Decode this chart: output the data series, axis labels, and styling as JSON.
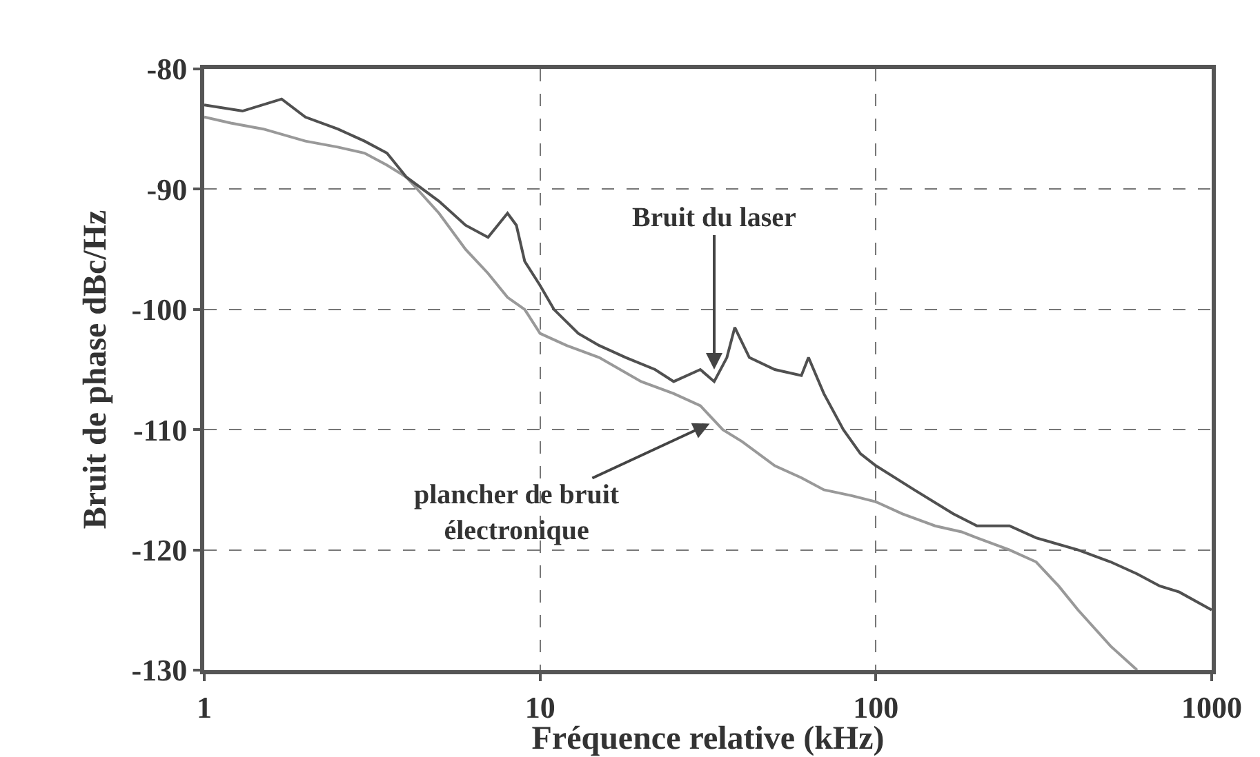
{
  "chart_data": {
    "type": "line",
    "xlabel": "Fréquence relative (kHz)",
    "ylabel": "Bruit de phase dBc/Hz",
    "log": "x",
    "xlim": [
      1,
      1000
    ],
    "xticks": [
      1,
      10,
      100,
      1000
    ],
    "ylim": [
      -130,
      -80
    ],
    "yticks": [
      -130,
      -120,
      -110,
      -100,
      -90,
      -80
    ],
    "grid": true,
    "line_style": "solid",
    "marker": "none",
    "annotations": [
      {
        "text": "Bruit du laser",
        "x": 33,
        "y": -105
      },
      {
        "text": "plancher de bruit\nélectronique",
        "x": 32,
        "y": -109.5
      }
    ],
    "series": [
      {
        "color": "#999999",
        "x": [
          1,
          1.2,
          1.5,
          2,
          2.5,
          3,
          3.5,
          4,
          5,
          6,
          7,
          8,
          9,
          10,
          12,
          15,
          20,
          25,
          30,
          35,
          40,
          50,
          60,
          70,
          85,
          100,
          120,
          150,
          180,
          200,
          250,
          300,
          350,
          400,
          500,
          600
        ],
        "values": [
          -84,
          -84.5,
          -85,
          -86,
          -86.5,
          -87,
          -88,
          -89,
          -92,
          -95,
          -97,
          -99,
          -100,
          -102,
          -103,
          -104,
          -106,
          -107,
          -108,
          -110,
          -111,
          -113,
          -114,
          -115,
          -115.5,
          -116,
          -117,
          -118,
          -118.5,
          -119,
          -120,
          -121,
          -123,
          -125,
          -128,
          -130
        ]
      },
      {
        "color": "#505050",
        "x": [
          1,
          1.3,
          1.7,
          2,
          2.5,
          3,
          3.5,
          4,
          5,
          6,
          7,
          8,
          8.5,
          9,
          10,
          11,
          13,
          15,
          18,
          22,
          25,
          30,
          33,
          36,
          38,
          42,
          50,
          60,
          63,
          70,
          80,
          90,
          100,
          130,
          170,
          200,
          250,
          300,
          400,
          500,
          600,
          700,
          800,
          1000
        ],
        "values": [
          -83,
          -83.5,
          -82.5,
          -84,
          -85,
          -86,
          -87,
          -89,
          -91,
          -93,
          -94,
          -92,
          -93,
          -96,
          -98,
          -100,
          -102,
          -103,
          -104,
          -105,
          -106,
          -105,
          -106,
          -104,
          -101.5,
          -104,
          -105,
          -105.5,
          -104,
          -107,
          -110,
          -112,
          -113,
          -115,
          -117,
          -118,
          -118,
          -119,
          -120,
          -121,
          -122,
          -123,
          -123.5,
          -125
        ]
      }
    ]
  }
}
